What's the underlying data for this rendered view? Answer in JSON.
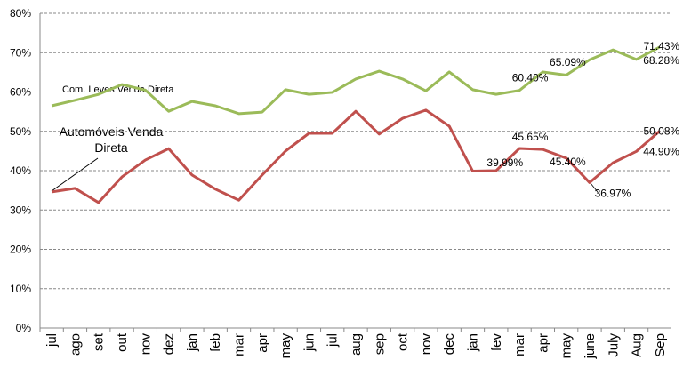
{
  "chart_data": {
    "type": "line",
    "categories": [
      "jul",
      "ago",
      "set",
      "out",
      "nov",
      "dez",
      "jan",
      "feb",
      "mar",
      "apr",
      "may",
      "jun",
      "jul",
      "aug",
      "sep",
      "oct",
      "nov",
      "dec",
      "jan",
      "fev",
      "mar",
      "apr",
      "may",
      "june",
      "July",
      "Aug",
      "Sep"
    ],
    "series": [
      {
        "name": "Com. Leves Venda Direta",
        "color": "#9bbb59",
        "values": [
          56.5,
          57.9,
          59.4,
          61.9,
          60.5,
          55.1,
          57.6,
          56.5,
          54.5,
          54.9,
          60.6,
          59.4,
          59.9,
          63.3,
          65.3,
          63.3,
          60.3,
          65.1,
          60.6,
          59.4,
          60.4,
          65.09,
          64.3,
          68.2,
          70.7,
          68.28,
          71.43
        ],
        "value_labels": [
          null,
          null,
          null,
          null,
          null,
          null,
          null,
          null,
          null,
          null,
          null,
          null,
          null,
          null,
          null,
          null,
          null,
          null,
          null,
          null,
          "60.40%",
          "65.09%",
          null,
          null,
          null,
          "68.28%",
          "71.43%"
        ]
      },
      {
        "name": "Automóveis Venda Direta",
        "color": "#c0504d",
        "values": [
          34.6,
          35.5,
          31.9,
          38.4,
          42.7,
          45.6,
          38.9,
          35.3,
          32.5,
          38.9,
          45.0,
          49.5,
          49.5,
          55.1,
          49.3,
          53.3,
          55.4,
          51.3,
          39.9,
          39.99,
          45.65,
          45.4,
          43.2,
          36.97,
          42.0,
          44.9,
          50.08
        ],
        "value_labels": [
          null,
          null,
          null,
          null,
          null,
          null,
          null,
          null,
          null,
          null,
          null,
          null,
          null,
          null,
          null,
          null,
          null,
          null,
          null,
          "39.99%",
          "45.65%",
          "45.40%",
          null,
          "36.97%",
          null,
          "44.90%",
          "50.08%"
        ]
      }
    ],
    "ylim": [
      0,
      80
    ],
    "yticks": [
      {
        "value": 0,
        "label": "0%"
      },
      {
        "value": 10,
        "label": "10%"
      },
      {
        "value": 20,
        "label": "20%"
      },
      {
        "value": 30,
        "label": "30%"
      },
      {
        "value": 40,
        "label": "40%"
      },
      {
        "value": 50,
        "label": "50%"
      },
      {
        "value": 60,
        "label": "60%"
      },
      {
        "value": 70,
        "label": "70%"
      },
      {
        "value": 80,
        "label": "80%"
      }
    ],
    "grid": true
  }
}
